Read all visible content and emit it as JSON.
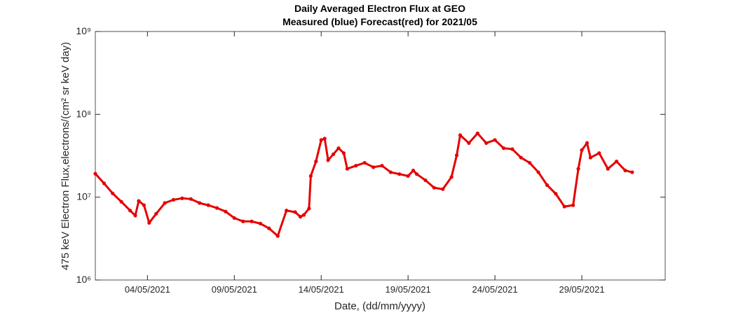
{
  "chart_data": {
    "type": "scatter",
    "title": "Daily Averaged Electron Flux at GEO",
    "subtitle": "Measured (blue) Forecast(red) for 2021/05",
    "xlabel": "Date, (dd/mm/yyyy)",
    "ylabel": "475 keV Electron Flux,electrons/(cm² sr keV day)",
    "log_y": true,
    "xlim": [
      1,
      33.8
    ],
    "xticks": [
      {
        "value": 4,
        "label": "04/05/2021"
      },
      {
        "value": 9,
        "label": "09/05/2021"
      },
      {
        "value": 14,
        "label": "14/05/2021"
      },
      {
        "value": 19,
        "label": "19/05/2021"
      },
      {
        "value": 24,
        "label": "24/05/2021"
      },
      {
        "value": 29,
        "label": "29/05/2021"
      }
    ],
    "ylim": [
      1000000,
      1000000000
    ],
    "yticks": [
      {
        "value": 1000000,
        "label": "10⁶"
      },
      {
        "value": 10000000,
        "label": "10⁷"
      },
      {
        "value": 100000000,
        "label": "10⁸"
      },
      {
        "value": 1000000000,
        "label": "10⁹"
      }
    ],
    "series": [
      {
        "color": "#e60000",
        "x": [
          1,
          1.5,
          2,
          2.5,
          3,
          3.3,
          3.5,
          3.8,
          4.1,
          4.5,
          5,
          5.5,
          6,
          6.5,
          7,
          7.5,
          8,
          8.5,
          9,
          9.5,
          10,
          10.5,
          11,
          11.5,
          12,
          12.5,
          12.8,
          13,
          13.3,
          13.4,
          13.7,
          14,
          14.2,
          14.4,
          14.7,
          15,
          15.3,
          15.5,
          16,
          16.5,
          17,
          17.5,
          18,
          18.5,
          19,
          19.3,
          19.5,
          20,
          20.5,
          21,
          21.5,
          21.8,
          22,
          22.5,
          23,
          23.5,
          24,
          24.5,
          25,
          25.5,
          26,
          26.5,
          27,
          27.5,
          28,
          28.5,
          28.8,
          29,
          29.3,
          29.5,
          30,
          30.5,
          31,
          31.5,
          31.9
        ],
        "values": [
          19200000,
          14700000,
          11100000,
          8800000,
          6900000,
          6000000,
          9000000,
          8000000,
          4900000,
          6300000,
          8500000,
          9300000,
          9700000,
          9500000,
          8500000,
          8000000,
          7400000,
          6700000,
          5600000,
          5100000,
          5100000,
          4800000,
          4200000,
          3400000,
          6900000,
          6600000,
          5800000,
          6100000,
          7300000,
          18000000,
          27000000,
          49000000,
          51000000,
          28000000,
          33000000,
          39000000,
          34000000,
          22000000,
          24000000,
          26000000,
          23000000,
          24000000,
          20000000,
          19000000,
          18000000,
          21000000,
          19000000,
          16000000,
          13000000,
          12500000,
          17500000,
          32000000,
          56000000,
          45000000,
          59000000,
          45000000,
          49000000,
          39000000,
          38000000,
          30000000,
          26000000,
          20000000,
          14000000,
          11000000,
          7700000,
          8000000,
          22000000,
          37000000,
          45000000,
          30000000,
          34000000,
          22000000,
          27000000,
          21000000,
          20000000
        ]
      }
    ]
  }
}
